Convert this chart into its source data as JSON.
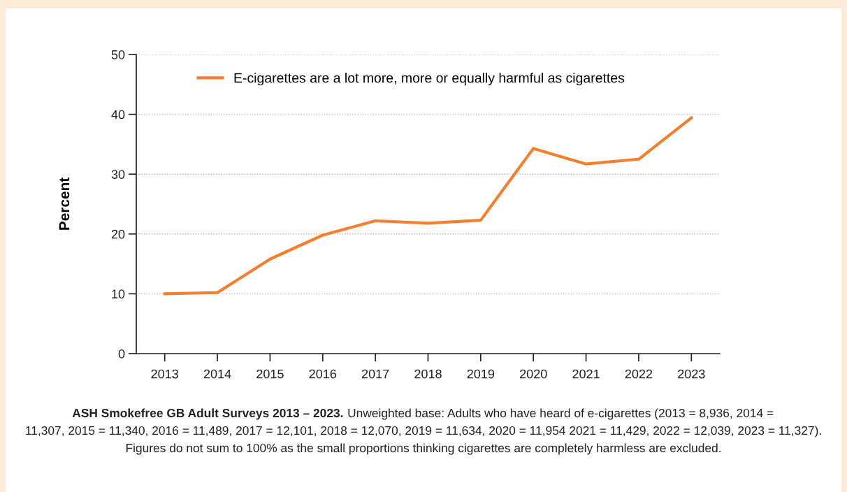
{
  "chart_data": {
    "type": "line",
    "ylabel": "Percent",
    "categories": [
      "2013",
      "2014",
      "2015",
      "2016",
      "2017",
      "2018",
      "2019",
      "2020",
      "2021",
      "2022",
      "2023"
    ],
    "series": [
      {
        "name": "E-cigarettes are a lot more, more or equally harmful as cigarettes",
        "color": "#f4802f",
        "values": [
          10.0,
          10.2,
          15.8,
          19.8,
          22.2,
          21.8,
          22.3,
          34.3,
          31.7,
          32.5,
          39.4
        ]
      }
    ],
    "ylim": [
      0,
      50
    ],
    "yticks": [
      0,
      10,
      20,
      30,
      40,
      50
    ],
    "grid": "y",
    "legend": "top left",
    "marker": "none",
    "line_style": "solid",
    "annotations": [
      "ASH Smokefree GB Adult Surveys 2013 – 2023.",
      "Unweighted base: Adults who have heard of e-cigarettes (2013 = 8,936, 2014 = 11,307, 2015 = 11,340, 2016 = 11,489, 2017 = 12,101, 2018 = 12,070, 2019 = 11,634, 2020 = 11,954 2021 = 11,429, 2022 = 12,039, 2023 = 11,327).",
      "Figures do not sum to 100% as the small proportions thinking cigarettes are completely harmless are excluded."
    ]
  }
}
